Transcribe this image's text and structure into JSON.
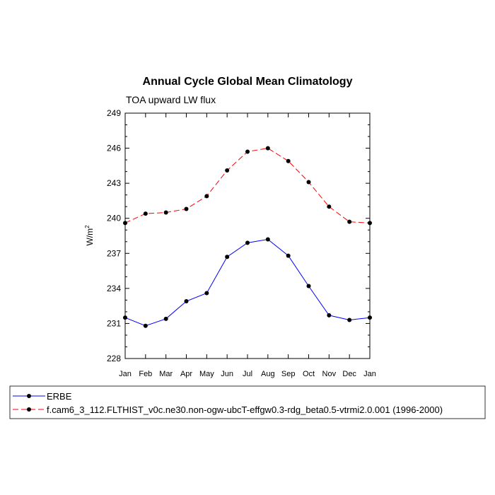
{
  "chart_data": {
    "type": "line",
    "title": "Annual Cycle Global Mean Climatology",
    "subtitle": "TOA upward LW flux",
    "ylabel": "W/m",
    "ylabel_sup": "2",
    "xlabel": "",
    "categories": [
      "Jan",
      "Feb",
      "Mar",
      "Apr",
      "May",
      "Jun",
      "Jul",
      "Aug",
      "Sep",
      "Oct",
      "Nov",
      "Dec",
      "Jan"
    ],
    "ylim": [
      228,
      249
    ],
    "yticks": [
      228,
      231,
      234,
      237,
      240,
      243,
      246,
      249
    ],
    "ytick_labels": [
      "228",
      "231",
      "234",
      "237",
      "240",
      "243",
      "246",
      "249"
    ],
    "series": [
      {
        "name": "ERBE",
        "color": "#0000ff",
        "dash": "solid",
        "values": [
          231.5,
          230.8,
          231.4,
          232.9,
          233.6,
          236.7,
          237.9,
          238.2,
          236.8,
          234.2,
          231.7,
          231.3,
          231.5
        ]
      },
      {
        "name": "f.cam6_3_112.FLTHIST_v0c.ne30.non-ogw-ubcT-effgw0.3-rdg_beta0.5-vtrmi2.0.001 (1996-2000)",
        "color": "#ff0000",
        "dash": "dashed",
        "values": [
          239.6,
          240.4,
          240.5,
          240.8,
          241.9,
          244.1,
          245.7,
          246.0,
          244.9,
          243.1,
          241.0,
          239.7,
          239.6
        ]
      }
    ]
  }
}
